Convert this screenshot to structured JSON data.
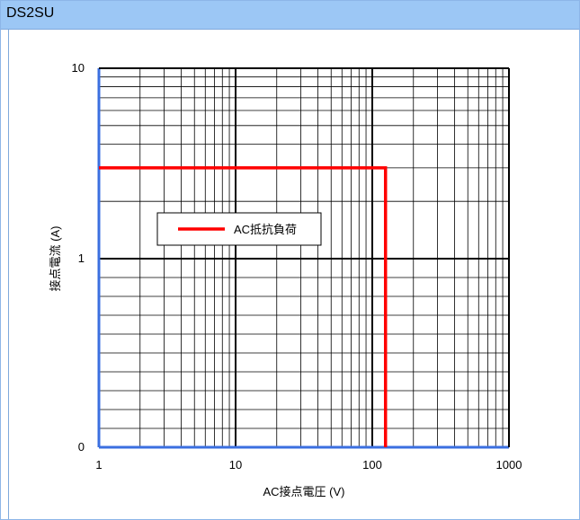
{
  "panel": {
    "title": "DS2SU"
  },
  "chart_data": {
    "type": "line",
    "title": "",
    "xlabel": "AC接点電圧 (V)",
    "ylabel": "接点電流 (A)",
    "x_scale": "log",
    "x_range": [
      1,
      1000
    ],
    "x_ticks": [
      "1",
      "10",
      "100",
      "1000"
    ],
    "y_ticks": [
      "0",
      "1",
      "10"
    ],
    "grid": true,
    "legend_position": "center-left",
    "series": [
      {
        "name": "AC抵抗負荷",
        "color": "#ff0000",
        "points": [
          {
            "x": 1,
            "y": 3
          },
          {
            "x": 125,
            "y": 3
          },
          {
            "x": 125,
            "y": 0
          }
        ]
      }
    ],
    "colors": {
      "axis": "#3b6fe0",
      "grid": "#000000"
    }
  }
}
